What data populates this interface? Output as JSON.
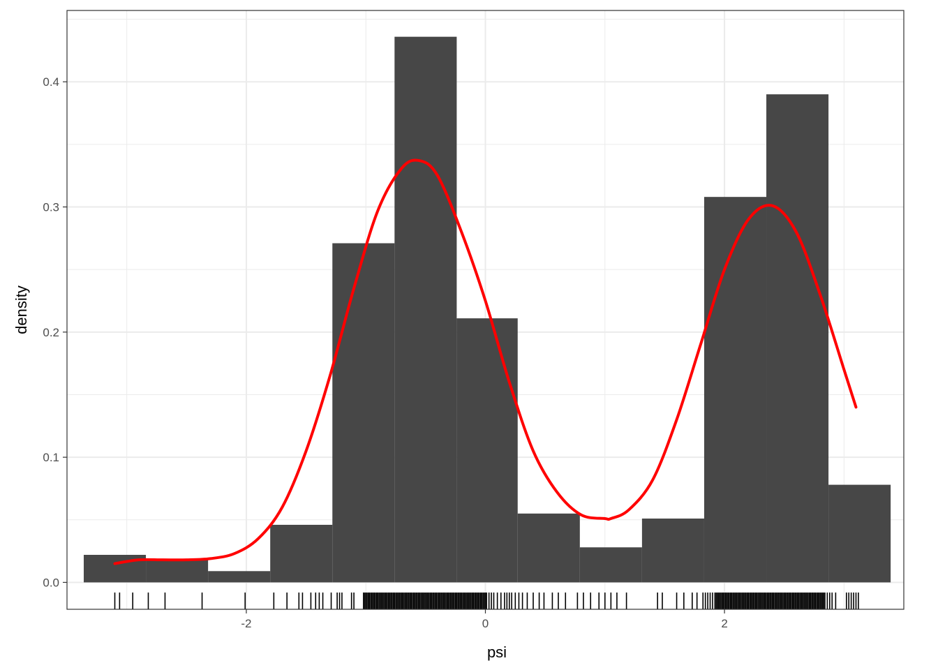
{
  "chart_data": {
    "type": "histogram",
    "xlabel": "psi",
    "ylabel": "density",
    "xlim": [
      -3.5,
      3.5
    ],
    "ylim": [
      -0.0215,
      0.457
    ],
    "x_ticks": [
      -2,
      0,
      2
    ],
    "x_tick_labels": [
      "-2",
      "0",
      "2"
    ],
    "y_ticks": [
      0.0,
      0.1,
      0.2,
      0.3,
      0.4
    ],
    "y_tick_labels": [
      "0.0",
      "0.1",
      "0.2",
      "0.3",
      "0.4"
    ],
    "grid": true,
    "legend": "none",
    "colors": {
      "bars": "#474747",
      "density_line": "#ff0000",
      "rug": "#000000",
      "grid": "#ebebeb",
      "panel_border": "#333333"
    },
    "bins": [
      {
        "x0": -3.36,
        "x1": -2.84,
        "density": 0.022
      },
      {
        "x0": -2.84,
        "x1": -2.32,
        "density": 0.018
      },
      {
        "x0": -2.32,
        "x1": -1.8,
        "density": 0.009
      },
      {
        "x0": -1.8,
        "x1": -1.28,
        "density": 0.046
      },
      {
        "x0": -1.28,
        "x1": -0.76,
        "density": 0.271
      },
      {
        "x0": -0.76,
        "x1": -0.24,
        "density": 0.436
      },
      {
        "x0": -0.24,
        "x1": 0.27,
        "density": 0.211
      },
      {
        "x0": 0.27,
        "x1": 0.79,
        "density": 0.055
      },
      {
        "x0": 0.79,
        "x1": 1.31,
        "density": 0.028
      },
      {
        "x0": 1.31,
        "x1": 1.83,
        "density": 0.051
      },
      {
        "x0": 1.83,
        "x1": 2.35,
        "density": 0.308
      },
      {
        "x0": 2.35,
        "x1": 2.87,
        "density": 0.39
      },
      {
        "x0": 2.87,
        "x1": 3.39,
        "density": 0.078
      }
    ],
    "density_curve": {
      "x": [
        -3.1,
        -2.9,
        -2.7,
        -2.5,
        -2.3,
        -2.1,
        -1.9,
        -1.7,
        -1.5,
        -1.3,
        -1.1,
        -0.9,
        -0.7,
        -0.55,
        -0.4,
        -0.2,
        0.0,
        0.2,
        0.4,
        0.6,
        0.8,
        1.0,
        1.05,
        1.2,
        1.4,
        1.6,
        1.8,
        2.0,
        2.2,
        2.4,
        2.6,
        2.8,
        3.0,
        3.1
      ],
      "y": [
        0.015,
        0.018,
        0.018,
        0.018,
        0.019,
        0.023,
        0.035,
        0.06,
        0.105,
        0.165,
        0.235,
        0.297,
        0.331,
        0.337,
        0.325,
        0.28,
        0.225,
        0.16,
        0.105,
        0.072,
        0.054,
        0.051,
        0.051,
        0.058,
        0.082,
        0.13,
        0.19,
        0.25,
        0.29,
        0.301,
        0.28,
        0.23,
        0.17,
        0.14
      ]
    },
    "rug": {
      "x": [
        -3.1,
        -3.06,
        -2.95,
        -2.82,
        -2.68,
        -2.37,
        -2.01,
        -1.77,
        -1.66,
        -1.56,
        -1.53,
        -1.46,
        -1.42,
        -1.39,
        -1.36,
        -1.29,
        -1.24,
        -1.22,
        -1.2,
        -1.12,
        -1.1,
        -1.02,
        -1.01,
        -1.0,
        -0.99,
        -0.98,
        -0.97,
        -0.96,
        -0.95,
        -0.94,
        -0.93,
        -0.92,
        -0.91,
        -0.9,
        -0.89,
        -0.88,
        -0.87,
        -0.86,
        -0.85,
        -0.84,
        -0.83,
        -0.82,
        -0.81,
        -0.8,
        -0.79,
        -0.78,
        -0.77,
        -0.76,
        -0.75,
        -0.74,
        -0.73,
        -0.72,
        -0.71,
        -0.7,
        -0.69,
        -0.68,
        -0.67,
        -0.66,
        -0.65,
        -0.64,
        -0.63,
        -0.62,
        -0.61,
        -0.6,
        -0.59,
        -0.58,
        -0.57,
        -0.56,
        -0.55,
        -0.54,
        -0.53,
        -0.52,
        -0.51,
        -0.5,
        -0.49,
        -0.48,
        -0.47,
        -0.46,
        -0.45,
        -0.44,
        -0.43,
        -0.42,
        -0.41,
        -0.4,
        -0.39,
        -0.38,
        -0.37,
        -0.36,
        -0.35,
        -0.34,
        -0.33,
        -0.32,
        -0.31,
        -0.3,
        -0.29,
        -0.28,
        -0.27,
        -0.26,
        -0.25,
        -0.24,
        -0.23,
        -0.22,
        -0.21,
        -0.2,
        -0.19,
        -0.18,
        -0.17,
        -0.16,
        -0.15,
        -0.14,
        -0.13,
        -0.12,
        -0.11,
        -0.1,
        -0.09,
        -0.08,
        -0.07,
        -0.06,
        -0.05,
        -0.04,
        -0.03,
        -0.02,
        -0.01,
        0.0,
        0.01,
        0.03,
        0.05,
        0.07,
        0.1,
        0.13,
        0.16,
        0.18,
        0.2,
        0.22,
        0.25,
        0.28,
        0.31,
        0.35,
        0.4,
        0.45,
        0.49,
        0.56,
        0.61,
        0.67,
        0.77,
        0.82,
        0.88,
        0.95,
        1.0,
        1.05,
        1.1,
        1.18,
        1.44,
        1.48,
        1.6,
        1.66,
        1.73,
        1.77,
        1.82,
        1.84,
        1.86,
        1.88,
        1.9,
        1.92,
        1.93,
        1.94,
        1.95,
        1.96,
        1.97,
        1.98,
        1.99,
        2.0,
        2.01,
        2.02,
        2.03,
        2.04,
        2.05,
        2.06,
        2.07,
        2.08,
        2.09,
        2.1,
        2.11,
        2.12,
        2.13,
        2.14,
        2.15,
        2.16,
        2.17,
        2.18,
        2.19,
        2.2,
        2.21,
        2.22,
        2.23,
        2.24,
        2.25,
        2.26,
        2.27,
        2.28,
        2.29,
        2.3,
        2.31,
        2.32,
        2.33,
        2.34,
        2.35,
        2.36,
        2.37,
        2.38,
        2.39,
        2.4,
        2.41,
        2.42,
        2.43,
        2.44,
        2.45,
        2.46,
        2.47,
        2.48,
        2.49,
        2.5,
        2.51,
        2.52,
        2.53,
        2.54,
        2.55,
        2.56,
        2.57,
        2.58,
        2.59,
        2.6,
        2.61,
        2.62,
        2.63,
        2.64,
        2.65,
        2.66,
        2.67,
        2.68,
        2.69,
        2.7,
        2.71,
        2.72,
        2.73,
        2.74,
        2.75,
        2.76,
        2.77,
        2.78,
        2.79,
        2.8,
        2.81,
        2.82,
        2.83,
        2.84,
        2.86,
        2.88,
        2.9,
        2.93,
        3.02,
        3.04,
        3.06,
        3.08,
        3.1,
        3.12
      ]
    }
  }
}
